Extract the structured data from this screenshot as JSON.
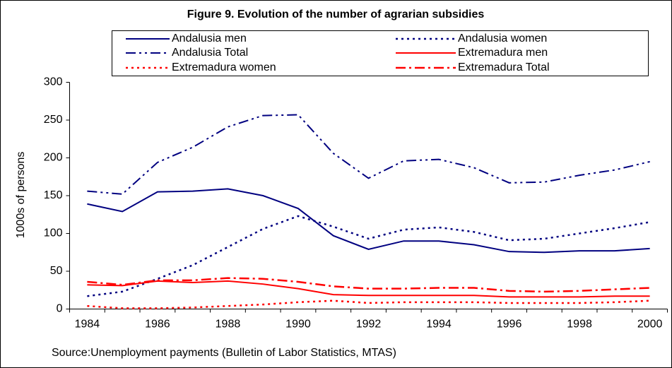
{
  "chart_data": {
    "type": "line",
    "title": "Figure 9. Evolution of the number of agrarian subsidies",
    "y_label": "1000s of persons",
    "source": "Source:Unemployment payments (Bulletin of Labor Statistics, MTAS)",
    "categories": [
      1984,
      null,
      1986,
      null,
      1988,
      null,
      1990,
      null,
      1992,
      null,
      1994,
      null,
      1996,
      null,
      1998,
      null,
      2000
    ],
    "ylim": [
      0,
      300
    ],
    "yticks": [
      0,
      50,
      100,
      150,
      200,
      250,
      300
    ],
    "grid": false,
    "series": [
      {
        "name": "Andalusia men",
        "color": "#000080",
        "linestyle": "solid",
        "values": [
          139,
          129,
          155,
          156,
          159,
          150,
          133,
          97,
          79,
          90,
          90,
          85,
          76,
          75,
          77,
          77,
          80
        ]
      },
      {
        "name": "Andalusia women",
        "color": "#000080",
        "linestyle": "dotted",
        "values": [
          17,
          23,
          40,
          58,
          82,
          106,
          123,
          109,
          93,
          105,
          108,
          102,
          91,
          93,
          100,
          107,
          115
        ]
      },
      {
        "name": "Andalusia Total",
        "color": "#000080",
        "linestyle": "dashdotdot",
        "values": [
          156,
          152,
          194,
          214,
          241,
          256,
          257,
          206,
          173,
          196,
          198,
          187,
          167,
          168,
          177,
          184,
          195
        ]
      },
      {
        "name": "Extremadura men",
        "color": "#ff0000",
        "linestyle": "solid",
        "values": [
          32,
          31,
          37,
          35,
          37,
          33,
          27,
          19,
          18,
          18,
          18,
          18,
          16,
          16,
          16,
          17,
          17
        ]
      },
      {
        "name": "Extremadura women",
        "color": "#ff0000",
        "linestyle": "dotted",
        "values": [
          4,
          1,
          1,
          2,
          4,
          6,
          9,
          11,
          8,
          9,
          9,
          9,
          8,
          8,
          8,
          9,
          11
        ]
      },
      {
        "name": "Extremadura Total",
        "color": "#ff0000",
        "linestyle": "dashdot",
        "values": [
          36,
          32,
          38,
          38,
          41,
          40,
          36,
          30,
          27,
          27,
          28,
          28,
          24,
          23,
          24,
          26,
          28
        ]
      }
    ]
  }
}
